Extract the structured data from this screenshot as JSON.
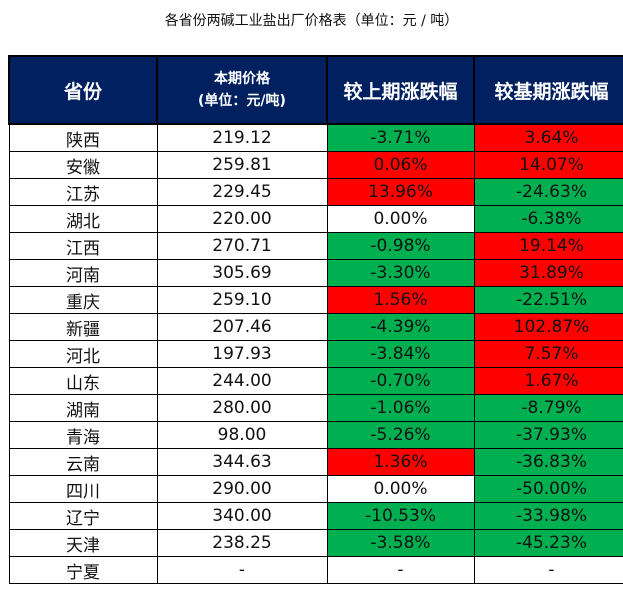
{
  "title": "各省份两碱工业盐出厂价格表（单位：元 / 吨）",
  "headers": {
    "province": "省份",
    "price_line1": "本期价格",
    "price_line2": "(单位：元/吨)",
    "change_prev": "较上期涨跌幅",
    "change_base": "较基期涨跌幅"
  },
  "colors": {
    "header": "#002060",
    "increase": "#ff0000",
    "decrease": "#00b050",
    "neutral": "#ffffff"
  },
  "rows": [
    {
      "province": "陕西",
      "price": "219.12",
      "prev": "-3.71%",
      "prev_color": "green",
      "base": "3.64%",
      "base_color": "red"
    },
    {
      "province": "安徽",
      "price": "259.81",
      "prev": "0.06%",
      "prev_color": "red",
      "base": "14.07%",
      "base_color": "red"
    },
    {
      "province": "江苏",
      "price": "229.45",
      "prev": "13.96%",
      "prev_color": "red",
      "base": "-24.63%",
      "base_color": "green"
    },
    {
      "province": "湖北",
      "price": "220.00",
      "prev": "0.00%",
      "prev_color": "white",
      "base": "-6.38%",
      "base_color": "green"
    },
    {
      "province": "江西",
      "price": "270.71",
      "prev": "-0.98%",
      "prev_color": "green",
      "base": "19.14%",
      "base_color": "red"
    },
    {
      "province": "河南",
      "price": "305.69",
      "prev": "-3.30%",
      "prev_color": "green",
      "base": "31.89%",
      "base_color": "red"
    },
    {
      "province": "重庆",
      "price": "259.10",
      "prev": "1.56%",
      "prev_color": "red",
      "base": "-22.51%",
      "base_color": "green"
    },
    {
      "province": "新疆",
      "price": "207.46",
      "prev": "-4.39%",
      "prev_color": "green",
      "base": "102.87%",
      "base_color": "red"
    },
    {
      "province": "河北",
      "price": "197.93",
      "prev": "-3.84%",
      "prev_color": "green",
      "base": "7.57%",
      "base_color": "red"
    },
    {
      "province": "山东",
      "price": "244.00",
      "prev": "-0.70%",
      "prev_color": "green",
      "base": "1.67%",
      "base_color": "red"
    },
    {
      "province": "湖南",
      "price": "280.00",
      "prev": "-1.06%",
      "prev_color": "green",
      "base": "-8.79%",
      "base_color": "green"
    },
    {
      "province": "青海",
      "price": "98.00",
      "prev": "-5.26%",
      "prev_color": "green",
      "base": "-37.93%",
      "base_color": "green"
    },
    {
      "province": "云南",
      "price": "344.63",
      "prev": "1.36%",
      "prev_color": "red",
      "base": "-36.83%",
      "base_color": "green"
    },
    {
      "province": "四川",
      "price": "290.00",
      "prev": "0.00%",
      "prev_color": "white",
      "base": "-50.00%",
      "base_color": "green"
    },
    {
      "province": "辽宁",
      "price": "340.00",
      "prev": "-10.53%",
      "prev_color": "green",
      "base": "-33.98%",
      "base_color": "green"
    },
    {
      "province": "天津",
      "price": "238.25",
      "prev": "-3.58%",
      "prev_color": "green",
      "base": "-45.23%",
      "base_color": "green"
    },
    {
      "province": "宁夏",
      "price": "-",
      "prev": "-",
      "prev_color": "white",
      "base": "-",
      "base_color": "white"
    }
  ]
}
